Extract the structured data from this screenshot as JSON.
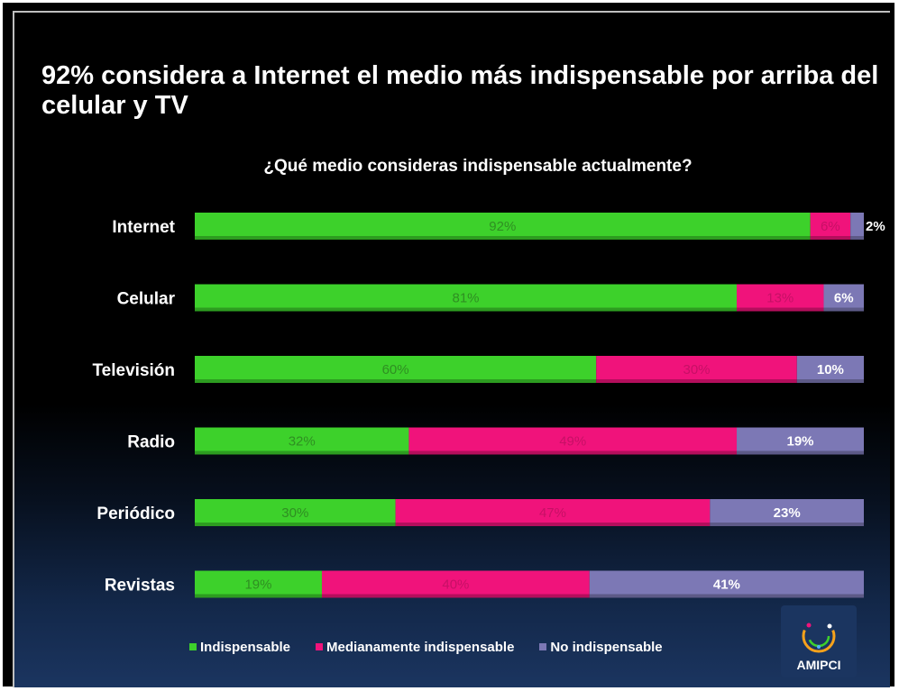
{
  "title": "92% considera a Internet el medio más indispensable por arriba del celular y TV",
  "logo_text": "AMIPCI",
  "colors": {
    "indispensable": "#3dd12b",
    "medianamente": "#f0137b",
    "no_indispensable": "#7c78b5"
  },
  "chart_data": {
    "type": "bar",
    "orientation": "horizontal",
    "stacked": true,
    "title": "¿Qué medio consideras indispensable actualmente?",
    "categories": [
      "Internet",
      "Celular",
      "Televisión",
      "Radio",
      "Periódico",
      "Revistas"
    ],
    "series": [
      {
        "name": "Indispensable",
        "values": [
          92,
          81,
          60,
          32,
          30,
          19
        ],
        "labels": [
          "92%",
          "81%",
          "60%",
          "32%",
          "30%",
          "19%"
        ]
      },
      {
        "name": "Medianamente indispensable",
        "values": [
          6,
          13,
          30,
          49,
          47,
          40
        ],
        "labels": [
          "6%",
          "13%",
          "30%",
          "49%",
          "47%",
          "40%"
        ]
      },
      {
        "name": "No indispensable",
        "values": [
          2,
          6,
          10,
          19,
          23,
          41
        ],
        "labels": [
          "2%",
          "6%",
          "10%",
          "19%",
          "23%",
          "41%"
        ]
      }
    ],
    "xlim": [
      0,
      100
    ],
    "legend_position": "bottom"
  }
}
